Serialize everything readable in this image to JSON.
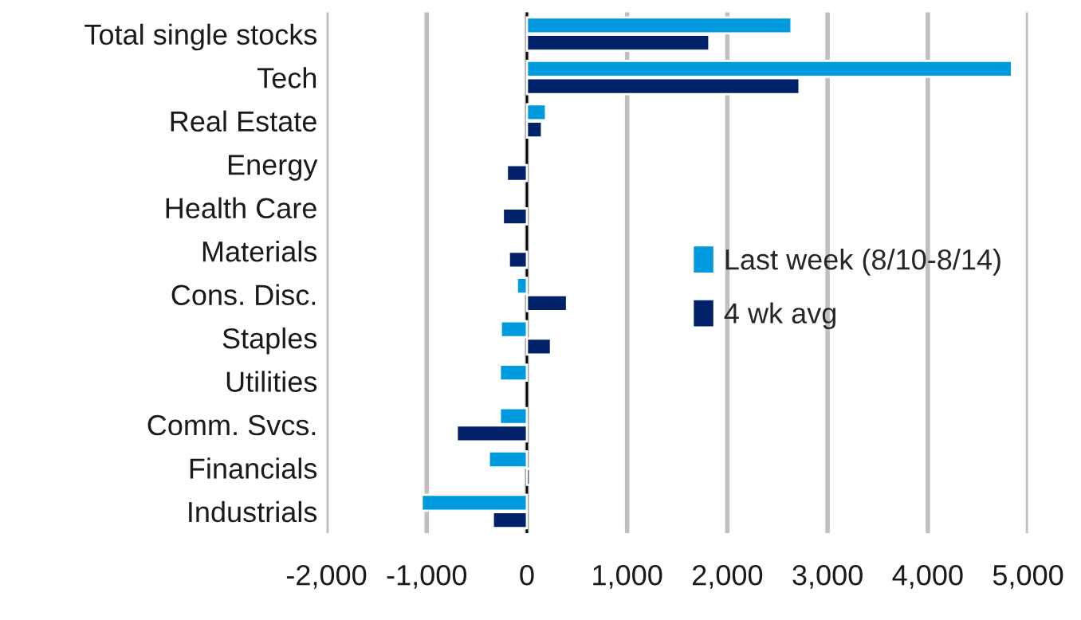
{
  "chart_data": {
    "type": "bar",
    "orientation": "horizontal",
    "categories": [
      "Total single stocks",
      "Tech",
      "Real Estate",
      "Energy",
      "Health Care",
      "Materials",
      "Cons. Disc.",
      "Staples",
      "Utilities",
      "Comm. Svcs.",
      "Financials",
      "Industrials"
    ],
    "series": [
      {
        "name": "Last week (8/10-8/14)",
        "color": "#009ade",
        "values": [
          2640,
          4840,
          190,
          null,
          null,
          null,
          -100,
          -260,
          -270,
          -270,
          -380,
          -1050
        ]
      },
      {
        "name": "4 wk avg",
        "color": "#012169",
        "values": [
          1820,
          2720,
          150,
          -200,
          -240,
          -180,
          400,
          240,
          null,
          -700,
          30,
          -340
        ]
      }
    ],
    "xlim": [
      -2000,
      5000
    ],
    "xticks": [
      {
        "value": -2000,
        "label": "-2,000"
      },
      {
        "value": -1000,
        "label": "-1,000"
      },
      {
        "value": 0,
        "label": "0"
      },
      {
        "value": 1000,
        "label": "1,000"
      },
      {
        "value": 2000,
        "label": "2,000"
      },
      {
        "value": 3000,
        "label": "3,000"
      },
      {
        "value": 4000,
        "label": "4,000"
      },
      {
        "value": 5000,
        "label": "5,000"
      }
    ],
    "grid": "x",
    "legend": "right"
  }
}
